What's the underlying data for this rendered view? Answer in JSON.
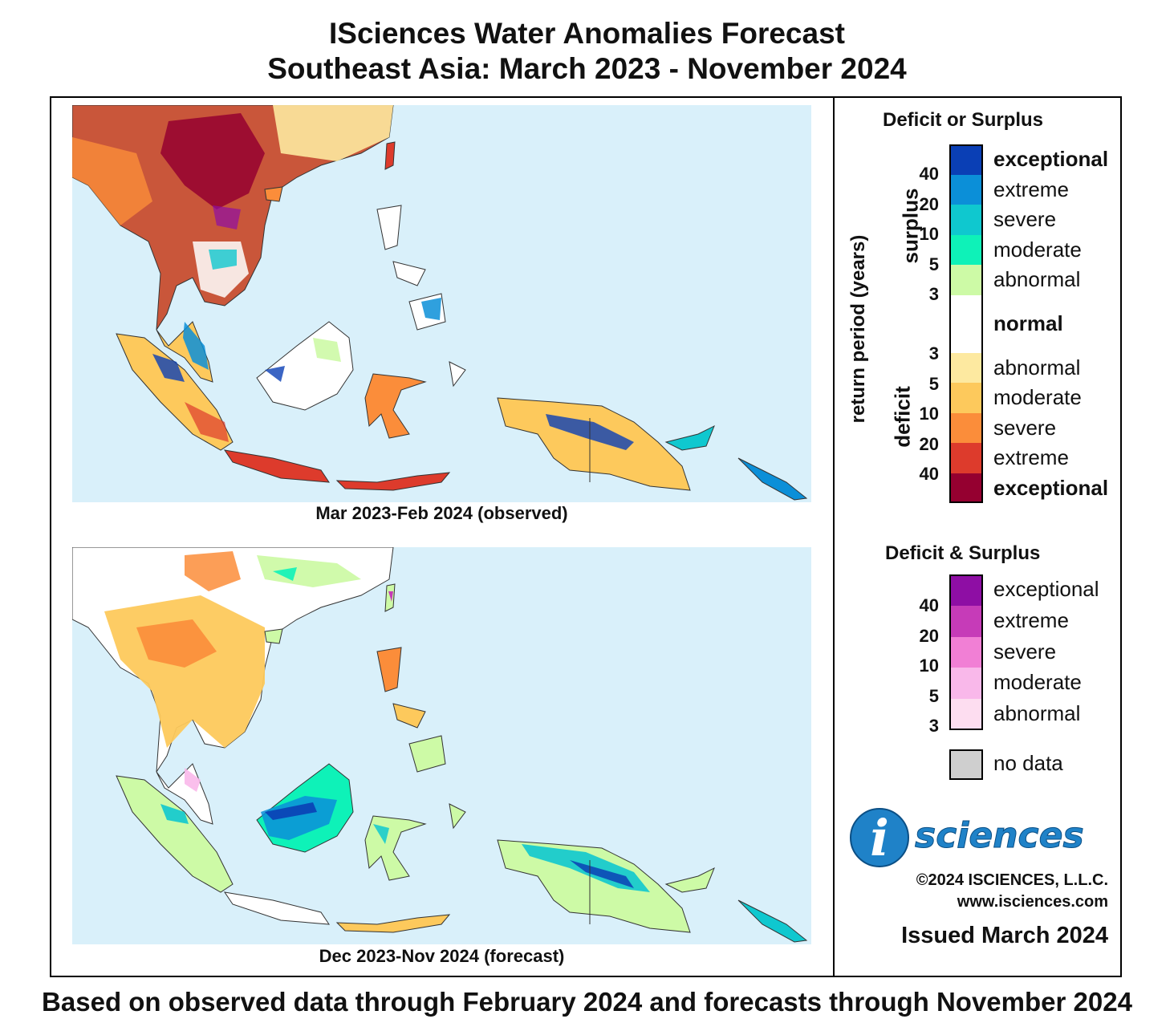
{
  "title_line1": "ISciences Water Anomalies Forecast",
  "title_line2": "Southeast Asia: March 2023 - November 2024",
  "maps": [
    {
      "caption": "Mar 2023-Feb 2024 (observed)"
    },
    {
      "caption": "Dec 2023-Nov 2024 (forecast)"
    }
  ],
  "footer": "Based on observed data through February 2024 and forecasts through November 2024",
  "legend": {
    "title1": "Deficit or Surplus",
    "axis_label": "return period (years)",
    "surplus_label": "surplus",
    "deficit_label": "deficit",
    "surplus": [
      {
        "label": "exceptional",
        "color": "#0a3fb5",
        "bold": true
      },
      {
        "label": "extreme",
        "color": "#0b8fd8"
      },
      {
        "label": "severe",
        "color": "#0fc8cf"
      },
      {
        "label": "moderate",
        "color": "#0ef2b8"
      },
      {
        "label": "abnormal",
        "color": "#cdfaa6"
      }
    ],
    "surplus_ticks": [
      "40",
      "20",
      "10",
      "5",
      "3"
    ],
    "normal_label": "normal",
    "normal_color": "#ffffff",
    "deficit": [
      {
        "label": "abnormal",
        "color": "#fde9a0"
      },
      {
        "label": "moderate",
        "color": "#fdc95c"
      },
      {
        "label": "severe",
        "color": "#fb8d3a"
      },
      {
        "label": "extreme",
        "color": "#dd3b2c"
      },
      {
        "label": "exceptional",
        "color": "#950030",
        "bold": true
      }
    ],
    "deficit_ticks": [
      "3",
      "5",
      "10",
      "20",
      "40"
    ],
    "title2": "Deficit & Surplus",
    "both": [
      {
        "label": "exceptional",
        "color": "#8e0ea4"
      },
      {
        "label": "extreme",
        "color": "#c63bb8"
      },
      {
        "label": "severe",
        "color": "#f17fd5"
      },
      {
        "label": "moderate",
        "color": "#f9b8ea"
      },
      {
        "label": "abnormal",
        "color": "#fdddf0"
      }
    ],
    "both_ticks": [
      "40",
      "20",
      "10",
      "5",
      "3"
    ],
    "nodata_label": "no data",
    "nodata_color": "#cfcfcf"
  },
  "logo": {
    "letter": "i",
    "text": "sciences"
  },
  "copyright": "©2024 ISCIENCES, L.L.C.",
  "website": "www.isciences.com",
  "issued": "Issued March 2024",
  "colors": {
    "ocean": "#d9f0fa",
    "border": "#000000"
  }
}
